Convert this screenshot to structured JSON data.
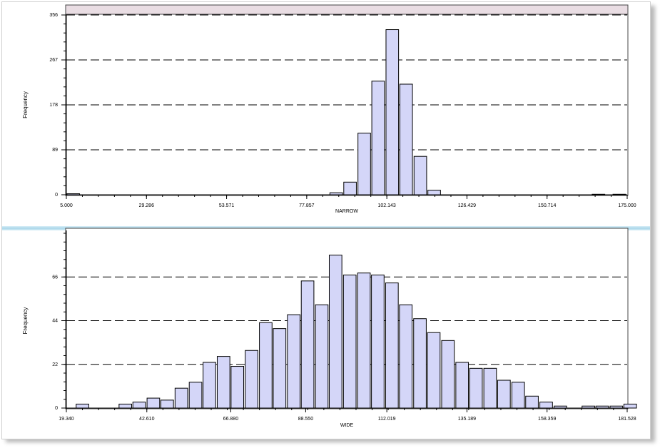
{
  "chart_data": [
    {
      "type": "bar",
      "xlabel": "NARROW",
      "ylabel": "Frequency",
      "xlim": [
        5.0,
        175.0
      ],
      "ylim": [
        0,
        356
      ],
      "x_ticks": [
        "5.000",
        "29.286",
        "53.571",
        "77.857",
        "102.143",
        "126.429",
        "150.714",
        "175.000"
      ],
      "y_ticks": [
        "0",
        "89",
        "178",
        "267",
        "356"
      ],
      "bin_width": 4.25,
      "bins": [
        {
          "x": 7.1,
          "value": 2
        },
        {
          "x": 86.8,
          "value": 4
        },
        {
          "x": 91.0,
          "value": 25
        },
        {
          "x": 95.3,
          "value": 122
        },
        {
          "x": 99.5,
          "value": 225
        },
        {
          "x": 103.8,
          "value": 327
        },
        {
          "x": 108.0,
          "value": 219
        },
        {
          "x": 112.3,
          "value": 76
        },
        {
          "x": 116.5,
          "value": 9
        },
        {
          "x": 166.3,
          "value": 1
        },
        {
          "x": 172.6,
          "value": 1
        }
      ],
      "bar_color": "#d4d6f8",
      "grid": "dashed horizontal"
    },
    {
      "type": "bar",
      "xlabel": "WIDE",
      "ylabel": "Frequency",
      "xlim": [
        19.34,
        181.528
      ],
      "ylim": [
        0,
        88
      ],
      "x_ticks": [
        "19.340",
        "42.610",
        "66.880",
        "88.550",
        "112.019",
        "135.189",
        "158.359",
        "181.528"
      ],
      "y_ticks": [
        "0",
        "22",
        "44",
        "66"
      ],
      "bin_width": 4.06,
      "bins": [
        {
          "x": 24.0,
          "value": 2
        },
        {
          "x": 36.4,
          "value": 2
        },
        {
          "x": 40.4,
          "value": 3
        },
        {
          "x": 44.5,
          "value": 5
        },
        {
          "x": 48.5,
          "value": 4
        },
        {
          "x": 52.6,
          "value": 10
        },
        {
          "x": 56.7,
          "value": 13
        },
        {
          "x": 60.7,
          "value": 23
        },
        {
          "x": 64.8,
          "value": 26
        },
        {
          "x": 68.8,
          "value": 21
        },
        {
          "x": 72.9,
          "value": 29
        },
        {
          "x": 77.0,
          "value": 43
        },
        {
          "x": 81.0,
          "value": 40
        },
        {
          "x": 85.1,
          "value": 47
        },
        {
          "x": 89.1,
          "value": 64
        },
        {
          "x": 93.2,
          "value": 52
        },
        {
          "x": 97.2,
          "value": 77
        },
        {
          "x": 101.3,
          "value": 67
        },
        {
          "x": 105.4,
          "value": 68
        },
        {
          "x": 109.4,
          "value": 67
        },
        {
          "x": 113.5,
          "value": 63
        },
        {
          "x": 117.5,
          "value": 52
        },
        {
          "x": 121.6,
          "value": 45
        },
        {
          "x": 125.6,
          "value": 38
        },
        {
          "x": 129.7,
          "value": 34
        },
        {
          "x": 133.8,
          "value": 23
        },
        {
          "x": 137.8,
          "value": 20
        },
        {
          "x": 141.9,
          "value": 20
        },
        {
          "x": 145.9,
          "value": 14
        },
        {
          "x": 150.0,
          "value": 13
        },
        {
          "x": 154.0,
          "value": 6
        },
        {
          "x": 158.1,
          "value": 3
        },
        {
          "x": 162.2,
          "value": 1
        },
        {
          "x": 170.3,
          "value": 1
        },
        {
          "x": 174.3,
          "value": 1
        },
        {
          "x": 178.4,
          "value": 1
        },
        {
          "x": 182.4,
          "value": 2
        }
      ],
      "bar_color": "#d4d6f8",
      "grid": "dashed horizontal"
    }
  ]
}
